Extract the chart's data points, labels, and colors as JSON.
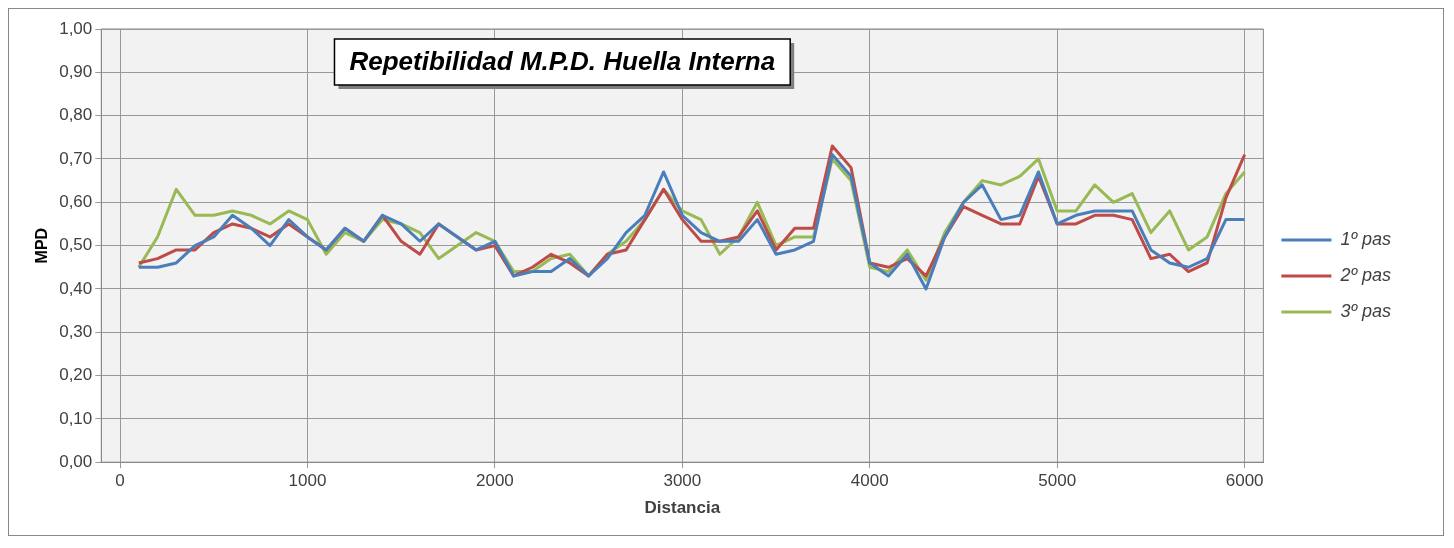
{
  "chart_data": {
    "type": "line",
    "title": "Repetibilidad M.P.D. Huella Interna",
    "xlabel": "Distancia",
    "ylabel": "MPD",
    "x": [
      100,
      200,
      300,
      400,
      500,
      600,
      700,
      800,
      900,
      1000,
      1100,
      1200,
      1300,
      1400,
      1500,
      1600,
      1700,
      1800,
      1900,
      2000,
      2100,
      2200,
      2300,
      2400,
      2500,
      2600,
      2700,
      2800,
      2900,
      3000,
      3100,
      3200,
      3300,
      3400,
      3500,
      3600,
      3700,
      3800,
      3900,
      4000,
      4100,
      4200,
      4300,
      4400,
      4500,
      4600,
      4700,
      4800,
      4900,
      5000,
      5100,
      5200,
      5300,
      5400,
      5500,
      5600,
      5700,
      5800,
      5900,
      6000
    ],
    "series": [
      {
        "name": "1º pas",
        "color": "#4a7ebb",
        "values": [
          0.45,
          0.45,
          0.46,
          0.5,
          0.52,
          0.57,
          0.54,
          0.5,
          0.56,
          0.52,
          0.49,
          0.54,
          0.51,
          0.57,
          0.55,
          0.51,
          0.55,
          0.52,
          0.49,
          0.51,
          0.43,
          0.44,
          0.44,
          0.47,
          0.43,
          0.47,
          0.53,
          0.57,
          0.67,
          0.57,
          0.53,
          0.51,
          0.51,
          0.56,
          0.48,
          0.49,
          0.51,
          0.71,
          0.66,
          0.46,
          0.43,
          0.48,
          0.4,
          0.52,
          0.6,
          0.64,
          0.56,
          0.57,
          0.67,
          0.55,
          0.57,
          0.58,
          0.58,
          0.58,
          0.49,
          0.46,
          0.45,
          0.47,
          0.56,
          0.56
        ]
      },
      {
        "name": "2º pas",
        "color": "#be4b48",
        "values": [
          0.46,
          0.47,
          0.49,
          0.49,
          0.53,
          0.55,
          0.54,
          0.52,
          0.55,
          0.52,
          0.49,
          0.54,
          0.51,
          0.57,
          0.51,
          0.48,
          0.55,
          0.52,
          0.49,
          0.5,
          0.43,
          0.45,
          0.48,
          0.46,
          0.43,
          0.48,
          0.49,
          0.56,
          0.63,
          0.56,
          0.51,
          0.51,
          0.52,
          0.58,
          0.49,
          0.54,
          0.54,
          0.73,
          0.68,
          0.46,
          0.45,
          0.47,
          0.43,
          0.52,
          0.59,
          0.57,
          0.55,
          0.55,
          0.66,
          0.55,
          0.55,
          0.57,
          0.57,
          0.56,
          0.47,
          0.48,
          0.44,
          0.46,
          0.61,
          0.71
        ]
      },
      {
        "name": "3º pas",
        "color": "#98b954",
        "values": [
          0.45,
          0.52,
          0.63,
          0.57,
          0.57,
          0.58,
          0.57,
          0.55,
          0.58,
          0.56,
          0.48,
          0.53,
          0.51,
          0.56,
          0.55,
          0.53,
          0.47,
          0.5,
          0.53,
          0.51,
          0.44,
          0.44,
          0.47,
          0.48,
          0.43,
          0.48,
          0.51,
          0.56,
          0.63,
          0.58,
          0.56,
          0.48,
          0.52,
          0.6,
          0.5,
          0.52,
          0.52,
          0.7,
          0.65,
          0.45,
          0.44,
          0.49,
          0.42,
          0.53,
          0.6,
          0.65,
          0.64,
          0.66,
          0.7,
          0.58,
          0.58,
          0.64,
          0.6,
          0.62,
          0.53,
          0.58,
          0.49,
          0.52,
          0.62,
          0.67
        ]
      }
    ],
    "xlim": [
      -100,
      6100
    ],
    "xticks": [
      0,
      1000,
      2000,
      3000,
      4000,
      5000,
      6000
    ],
    "ylim": [
      0,
      1
    ],
    "yticks": [
      {
        "value": 0,
        "label": "0,00"
      },
      {
        "value": 0.1,
        "label": "0,10"
      },
      {
        "value": 0.2,
        "label": "0,20"
      },
      {
        "value": 0.3,
        "label": "0,30"
      },
      {
        "value": 0.4,
        "label": "0,40"
      },
      {
        "value": 0.5,
        "label": "0,50"
      },
      {
        "value": 0.6,
        "label": "0,60"
      },
      {
        "value": 0.7,
        "label": "0,70"
      },
      {
        "value": 0.8,
        "label": "0,80"
      },
      {
        "value": 0.9,
        "label": "0,90"
      },
      {
        "value": 1,
        "label": "1,00"
      }
    ],
    "grid": true,
    "legend": "right",
    "marker": "none",
    "line_style": "solid"
  }
}
